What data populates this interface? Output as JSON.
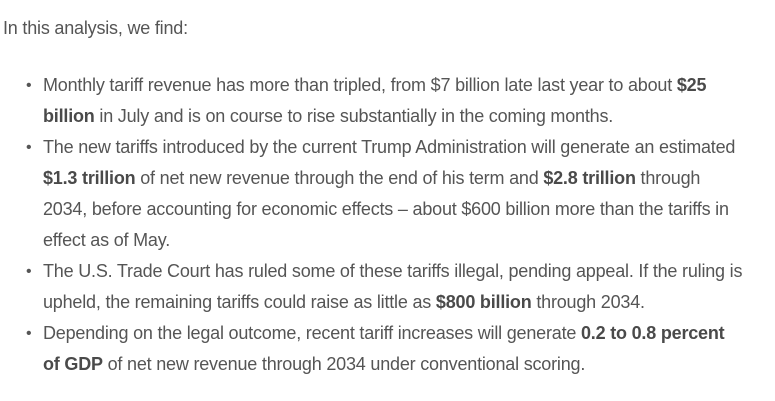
{
  "intro": "In this analysis, we find:",
  "bullets": [
    {
      "segments": [
        {
          "text": "Monthly tariff revenue has more than tripled, from $7 billion late last year to about ",
          "bold": false
        },
        {
          "text": "$25 billion",
          "bold": true
        },
        {
          "text": " in July and is on course to rise substantially in the coming months.",
          "bold": false
        }
      ]
    },
    {
      "segments": [
        {
          "text": "The new tariffs introduced by the current Trump Administration will generate an estimated ",
          "bold": false
        },
        {
          "text": "$1.3 trillion",
          "bold": true
        },
        {
          "text": " of net new revenue through the end of his term and ",
          "bold": false
        },
        {
          "text": "$2.8 trillion",
          "bold": true
        },
        {
          "text": " through 2034, before accounting for economic effects – about $600 billion more than the tariffs in effect as of May.",
          "bold": false
        }
      ]
    },
    {
      "segments": [
        {
          "text": "The U.S. Trade Court has ruled some of these tariffs illegal, pending appeal. If the ruling is upheld, the remaining tariffs could raise as little as ",
          "bold": false
        },
        {
          "text": "$800 billion",
          "bold": true
        },
        {
          "text": " through 2034.",
          "bold": false
        }
      ]
    },
    {
      "segments": [
        {
          "text": "Depending on the legal outcome, recent tariff increases will generate ",
          "bold": false
        },
        {
          "text": "0.2 to 0.8 percent of GDP",
          "bold": true
        },
        {
          "text": " of net new revenue through 2034 under conventional scoring.",
          "bold": false
        }
      ]
    }
  ]
}
